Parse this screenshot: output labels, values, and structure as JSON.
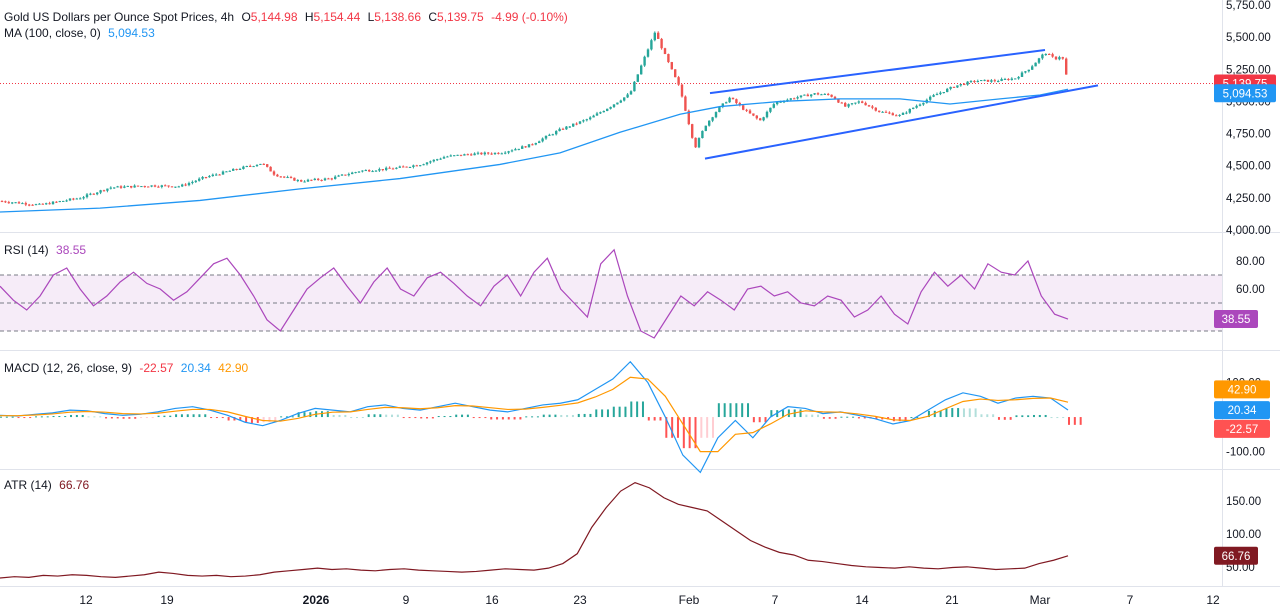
{
  "colors": {
    "up": "#26a69a",
    "down": "#ef5350",
    "ma": "#2196f3",
    "channel": "#2962ff",
    "rsi": "#ab47bc",
    "macd": "#2196f3",
    "signal": "#ff9800",
    "atr": "#801922",
    "price_badge": "#f23645",
    "ma_badge": "#2196f3"
  },
  "header": {
    "title": "Gold US Dollars per Ounce Spot Prices, 4h",
    "open_label": "O",
    "open": "5,144.98",
    "high_label": "H",
    "high": "5,154.44",
    "low_label": "L",
    "low": "5,138.66",
    "close_label": "C",
    "close": "5,139.75",
    "change": "-4.99 (-0.10%)",
    "ma_label": "MA (100, close, 0)",
    "ma_value": "5,094.53"
  },
  "chart_data": [
    {
      "type": "candlestick",
      "title": "Gold US Dollars per Ounce Spot Prices, 4h",
      "ylim": [
        4000,
        5750
      ],
      "y_ticks": [
        "5,750.00",
        "5,500.00",
        "5,250.00",
        "5,000.00",
        "4,750.00",
        "4,500.00",
        "4,250.00",
        "4,000.00"
      ],
      "y_tick_values": [
        5750,
        5500,
        5250,
        5000,
        4750,
        4500,
        4250,
        4000
      ],
      "x_labels": [
        "12",
        "19",
        "2026",
        "9",
        "16",
        "23",
        "Feb",
        "7",
        "14",
        "21",
        "Mar",
        "7",
        "12"
      ],
      "close_path": [
        [
          0,
          4225
        ],
        [
          40,
          4195
        ],
        [
          80,
          4250
        ],
        [
          110,
          4330
        ],
        [
          150,
          4345
        ],
        [
          180,
          4340
        ],
        [
          205,
          4410
        ],
        [
          235,
          4470
        ],
        [
          262,
          4520
        ],
        [
          275,
          4430
        ],
        [
          300,
          4380
        ],
        [
          330,
          4400
        ],
        [
          360,
          4460
        ],
        [
          395,
          4480
        ],
        [
          420,
          4510
        ],
        [
          445,
          4570
        ],
        [
          470,
          4590
        ],
        [
          500,
          4600
        ],
        [
          530,
          4660
        ],
        [
          560,
          4780
        ],
        [
          590,
          4870
        ],
        [
          610,
          4960
        ],
        [
          630,
          5060
        ],
        [
          645,
          5350
        ],
        [
          655,
          5540
        ],
        [
          665,
          5360
        ],
        [
          680,
          5100
        ],
        [
          695,
          4640
        ],
        [
          705,
          4810
        ],
        [
          718,
          4940
        ],
        [
          730,
          5030
        ],
        [
          745,
          4930
        ],
        [
          760,
          4850
        ],
        [
          775,
          4990
        ],
        [
          795,
          5030
        ],
        [
          815,
          5060
        ],
        [
          830,
          5050
        ],
        [
          845,
          4960
        ],
        [
          860,
          5000
        ],
        [
          880,
          4920
        ],
        [
          900,
          4890
        ],
        [
          915,
          4960
        ],
        [
          935,
          5050
        ],
        [
          955,
          5120
        ],
        [
          975,
          5160
        ],
        [
          995,
          5160
        ],
        [
          1015,
          5180
        ],
        [
          1030,
          5260
        ],
        [
          1045,
          5380
        ],
        [
          1055,
          5330
        ],
        [
          1062,
          5360
        ],
        [
          1068,
          5140
        ]
      ],
      "ma_path": [
        [
          0,
          4140
        ],
        [
          100,
          4170
        ],
        [
          200,
          4230
        ],
        [
          300,
          4320
        ],
        [
          400,
          4400
        ],
        [
          500,
          4510
        ],
        [
          560,
          4600
        ],
        [
          620,
          4760
        ],
        [
          680,
          4900
        ],
        [
          720,
          4960
        ],
        [
          780,
          5000
        ],
        [
          840,
          5020
        ],
        [
          900,
          5020
        ],
        [
          950,
          4980
        ],
        [
          1000,
          5020
        ],
        [
          1040,
          5050
        ],
        [
          1068,
          5094.53
        ]
      ],
      "channel_upper": [
        [
          710,
          5065
        ],
        [
          1045,
          5400
        ]
      ],
      "channel_lower": [
        [
          705,
          4555
        ],
        [
          1098,
          5125
        ]
      ],
      "last_price": 5139.75,
      "last_price_label": "5,139.75",
      "ma_last": 5094.53,
      "ma_last_label": "5,094.53"
    },
    {
      "type": "line",
      "title": "RSI (14)",
      "legend_value": "38.55",
      "ylim": [
        20,
        95
      ],
      "y_ticks": [
        "80.00",
        "60.00"
      ],
      "y_tick_values": [
        80,
        60
      ],
      "bands": [
        70,
        50,
        30
      ],
      "values": [
        62,
        52,
        45,
        55,
        70,
        75,
        60,
        48,
        55,
        65,
        72,
        64,
        60,
        52,
        58,
        68,
        78,
        82,
        70,
        55,
        38,
        30,
        45,
        60,
        68,
        75,
        62,
        50,
        65,
        75,
        60,
        55,
        68,
        72,
        64,
        55,
        48,
        62,
        70,
        55,
        72,
        82,
        60,
        50,
        40,
        78,
        88,
        55,
        30,
        25,
        40,
        55,
        48,
        58,
        52,
        45,
        60,
        62,
        55,
        58,
        50,
        48,
        55,
        52,
        40,
        45,
        55,
        42,
        35,
        58,
        72,
        62,
        70,
        60,
        78,
        72,
        70,
        80,
        55,
        42,
        38.55
      ],
      "last_label": "38.55"
    },
    {
      "type": "macd",
      "title": "MACD (12, 26, close, 9)",
      "legend_values": [
        "-22.57",
        "20.34",
        "42.90"
      ],
      "ylim": [
        -130,
        165
      ],
      "y_ticks": [
        "100.00",
        "-100.00"
      ],
      "y_tick_values": [
        100,
        -100
      ],
      "macd": [
        5,
        3,
        8,
        12,
        20,
        18,
        10,
        5,
        8,
        15,
        25,
        30,
        20,
        5,
        -15,
        -25,
        -10,
        10,
        25,
        20,
        15,
        30,
        35,
        25,
        20,
        30,
        40,
        30,
        20,
        15,
        25,
        35,
        40,
        50,
        80,
        110,
        160,
        100,
        0,
        -110,
        -160,
        -60,
        -10,
        -60,
        0,
        30,
        25,
        10,
        15,
        5,
        -5,
        -20,
        -10,
        20,
        50,
        70,
        60,
        40,
        55,
        60,
        55,
        20.34
      ],
      "signal": [
        4,
        4,
        6,
        9,
        14,
        16,
        14,
        10,
        9,
        11,
        17,
        22,
        22,
        15,
        2,
        -10,
        -12,
        -4,
        8,
        14,
        15,
        22,
        28,
        27,
        24,
        27,
        33,
        32,
        27,
        22,
        23,
        28,
        34,
        41,
        58,
        80,
        115,
        110,
        60,
        -20,
        -100,
        -100,
        -50,
        -45,
        -20,
        8,
        18,
        15,
        14,
        9,
        2,
        -8,
        -10,
        2,
        24,
        45,
        52,
        48,
        50,
        54,
        55,
        42.9
      ],
      "last_hist_label": "-22.57",
      "last_macd_label": "20.34",
      "last_signal_label": "42.90"
    },
    {
      "type": "line",
      "title": "ATR (14)",
      "legend_value": "66.76",
      "ylim": [
        30,
        185
      ],
      "y_ticks": [
        "150.00",
        "100.00",
        "50.00"
      ],
      "y_tick_values": [
        150,
        100,
        50
      ],
      "values": [
        33,
        35,
        34,
        37,
        36,
        38,
        37,
        35,
        34,
        36,
        38,
        42,
        40,
        37,
        36,
        37,
        35,
        36,
        38,
        42,
        44,
        46,
        48,
        46,
        47,
        45,
        44,
        46,
        47,
        45,
        44,
        43,
        42,
        43,
        45,
        47,
        46,
        45,
        48,
        55,
        70,
        110,
        140,
        165,
        178,
        170,
        155,
        145,
        140,
        135,
        120,
        105,
        90,
        80,
        72,
        68,
        60,
        58,
        55,
        52,
        50,
        49,
        48,
        50,
        48,
        47,
        49,
        50,
        48,
        46,
        47,
        48,
        55,
        60,
        66.76
      ],
      "last_label": "66.76"
    }
  ]
}
